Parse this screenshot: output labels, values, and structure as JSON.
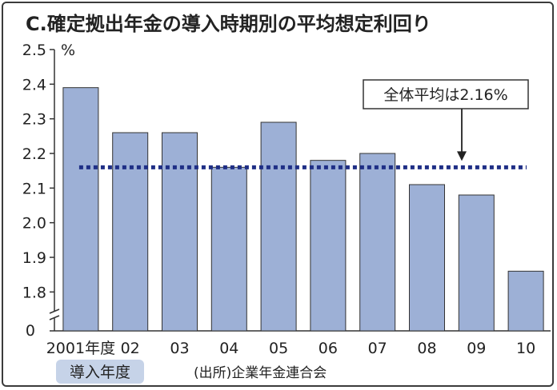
{
  "chart_data": {
    "type": "bar",
    "title": "C.確定拠出年金の導入時期別の平均想定利回り",
    "unit": "%",
    "categories": [
      "2001年度",
      "02",
      "03",
      "04",
      "05",
      "06",
      "07",
      "08",
      "09",
      "10"
    ],
    "values": [
      2.39,
      2.26,
      2.26,
      2.16,
      2.29,
      2.18,
      2.2,
      2.11,
      2.08,
      1.86
    ],
    "ylim": [
      1.75,
      2.5
    ],
    "yticks": [
      "1.8",
      "1.9",
      "2.0",
      "2.1",
      "2.2",
      "2.3",
      "2.4",
      "2.5"
    ],
    "y_zero_label": "0",
    "axis_break": true,
    "xlabel": "導入年度",
    "source": "(出所)企業年金連合会",
    "average": {
      "value": 2.16,
      "label": "全体平均は2.16%",
      "style": "dotted",
      "color": "#1f2f86"
    },
    "bar_color": "#9db0d6",
    "bar_edge_color": "#333333",
    "grid": false,
    "legend": "none"
  }
}
